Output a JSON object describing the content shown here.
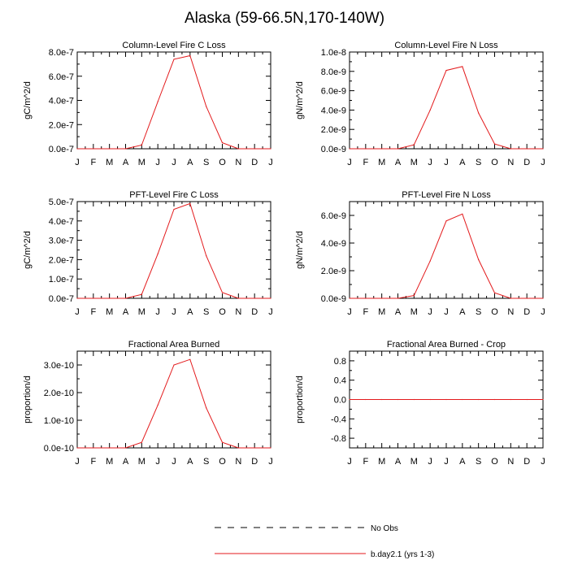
{
  "title": "Alaska (59-66.5N,170-140W)",
  "legend": {
    "items": [
      {
        "label": "No Obs",
        "color": "#000000",
        "dash": true
      },
      {
        "label": "b.day2.1 (yrs 1-3)",
        "color": "#e31a1c",
        "dash": false
      }
    ]
  },
  "chart_data": [
    {
      "type": "line",
      "title": "Column-Level Fire C Loss",
      "ylabel": "gC/m^2/d",
      "categories": [
        "J",
        "F",
        "M",
        "A",
        "M",
        "J",
        "J",
        "A",
        "S",
        "O",
        "N",
        "D",
        "J"
      ],
      "ylim": [
        0,
        8e-07
      ],
      "yticks": [
        0,
        2e-07,
        4e-07,
        6e-07,
        8e-07
      ],
      "ytick_labels": [
        "0.0e-7",
        "2.0e-7",
        "4.0e-7",
        "6.0e-7",
        "8.0e-7"
      ],
      "series": [
        {
          "name": "b.day2.1 (yrs 1-3)",
          "color": "#e31a1c",
          "values": [
            0,
            0,
            0,
            0,
            3e-08,
            3.9e-07,
            7.4e-07,
            7.7e-07,
            3.5e-07,
            5e-08,
            0,
            0,
            0
          ]
        }
      ]
    },
    {
      "type": "line",
      "title": "Column-Level Fire N Loss",
      "ylabel": "gN/m^2/d",
      "categories": [
        "J",
        "F",
        "M",
        "A",
        "M",
        "J",
        "J",
        "A",
        "S",
        "O",
        "N",
        "D",
        "J"
      ],
      "ylim": [
        0,
        1e-08
      ],
      "yticks": [
        0,
        2e-09,
        4e-09,
        6e-09,
        8e-09,
        1e-08
      ],
      "ytick_labels": [
        "0.0e-9",
        "2.0e-9",
        "4.0e-9",
        "6.0e-9",
        "8.0e-9",
        "1.0e-8"
      ],
      "series": [
        {
          "name": "b.day2.1 (yrs 1-3)",
          "color": "#e31a1c",
          "values": [
            0,
            0,
            0,
            0,
            4e-10,
            4e-09,
            8.1e-09,
            8.5e-09,
            3.7e-09,
            5e-10,
            0,
            0,
            0
          ]
        }
      ]
    },
    {
      "type": "line",
      "title": "PFT-Level Fire C Loss",
      "ylabel": "gC/m^2/d",
      "categories": [
        "J",
        "F",
        "M",
        "A",
        "M",
        "J",
        "J",
        "A",
        "S",
        "O",
        "N",
        "D",
        "J"
      ],
      "ylim": [
        0,
        5e-07
      ],
      "yticks": [
        0,
        1e-07,
        2e-07,
        3e-07,
        4e-07,
        5e-07
      ],
      "ytick_labels": [
        "0.0e-7",
        "1.0e-7",
        "2.0e-7",
        "3.0e-7",
        "4.0e-7",
        "5.0e-7"
      ],
      "series": [
        {
          "name": "b.day2.1 (yrs 1-3)",
          "color": "#e31a1c",
          "values": [
            0,
            0,
            0,
            0,
            2e-08,
            2.3e-07,
            4.6e-07,
            4.9e-07,
            2.2e-07,
            3e-08,
            0,
            0,
            0
          ]
        }
      ]
    },
    {
      "type": "line",
      "title": "PFT-Level Fire N Loss",
      "ylabel": "gN/m^2/d",
      "categories": [
        "J",
        "F",
        "M",
        "A",
        "M",
        "J",
        "J",
        "A",
        "S",
        "O",
        "N",
        "D",
        "J"
      ],
      "ylim": [
        0,
        7e-09
      ],
      "yticks": [
        0,
        2e-09,
        4e-09,
        6e-09
      ],
      "ytick_labels": [
        "0.0e-9",
        "2.0e-9",
        "4.0e-9",
        "6.0e-9"
      ],
      "series": [
        {
          "name": "b.day2.1 (yrs 1-3)",
          "color": "#e31a1c",
          "values": [
            0,
            0,
            0,
            0,
            2e-10,
            2.7e-09,
            5.6e-09,
            6.1e-09,
            2.8e-09,
            4e-10,
            0,
            0,
            0
          ]
        }
      ]
    },
    {
      "type": "line",
      "title": "Fractional Area Burned",
      "ylabel": "proportion/d",
      "categories": [
        "J",
        "F",
        "M",
        "A",
        "M",
        "J",
        "J",
        "A",
        "S",
        "O",
        "N",
        "D",
        "J"
      ],
      "ylim": [
        0,
        3.5e-10
      ],
      "yticks": [
        0,
        1e-10,
        2e-10,
        3e-10
      ],
      "ytick_labels": [
        "0.0e-10",
        "1.0e-10",
        "2.0e-10",
        "3.0e-10"
      ],
      "series": [
        {
          "name": "b.day2.1 (yrs 1-3)",
          "color": "#e31a1c",
          "values": [
            0,
            0,
            0,
            0,
            2e-11,
            1.55e-10,
            3e-10,
            3.2e-10,
            1.45e-10,
            2e-11,
            0,
            0,
            0
          ]
        }
      ]
    },
    {
      "type": "line",
      "title": "Fractional Area Burned - Crop",
      "ylabel": "proportion/d",
      "categories": [
        "J",
        "F",
        "M",
        "A",
        "M",
        "J",
        "J",
        "A",
        "S",
        "O",
        "N",
        "D",
        "J"
      ],
      "ylim": [
        -1.0,
        1.0
      ],
      "yticks": [
        -0.8,
        -0.4,
        0.0,
        0.4,
        0.8
      ],
      "ytick_labels": [
        "-0.8",
        "-0.4",
        "0.0",
        "0.4",
        "0.8"
      ],
      "series": [
        {
          "name": "b.day2.1 (yrs 1-3)",
          "color": "#e31a1c",
          "values": [
            0,
            0,
            0,
            0,
            0,
            0,
            0,
            0,
            0,
            0,
            0,
            0,
            0
          ]
        }
      ]
    }
  ]
}
